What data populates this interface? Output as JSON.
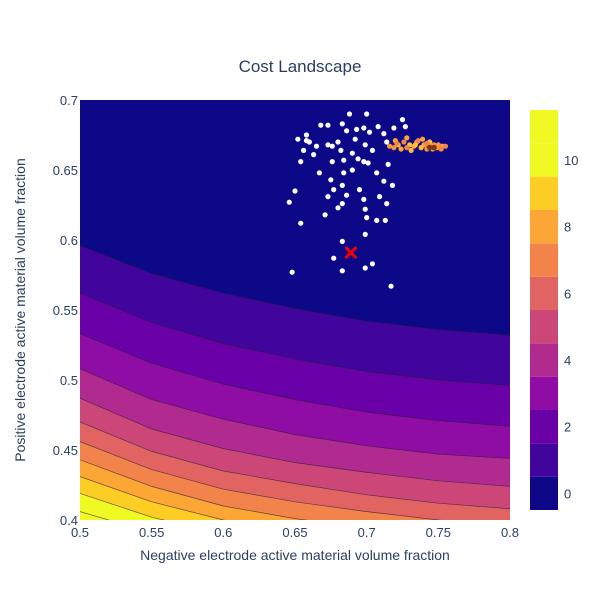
{
  "chart_data": {
    "type": "contour",
    "title": "Cost Landscape",
    "xlabel": "Negative electrode active material volume fraction",
    "ylabel": "Positive electrode active material volume fraction",
    "xlim": [
      0.5,
      0.8
    ],
    "ylim": [
      0.4,
      0.7
    ],
    "x_ticks": [
      0.5,
      0.55,
      0.6,
      0.65,
      0.7,
      0.75,
      0.8
    ],
    "x_tick_labels": [
      "0.5",
      "0.55",
      "0.6",
      "0.65",
      "0.7",
      "0.75",
      "0.8"
    ],
    "y_ticks": [
      0.4,
      0.45,
      0.5,
      0.55,
      0.6,
      0.65,
      0.7
    ],
    "y_tick_labels": [
      "0.4",
      "0.45",
      "0.5",
      "0.55",
      "0.6",
      "0.65",
      "0.7"
    ],
    "colorbar": {
      "range": [
        -0.5,
        11.5
      ],
      "ticks": [
        0,
        2,
        4,
        6,
        8,
        10
      ],
      "tick_labels": [
        "0",
        "2",
        "4",
        "6",
        "8",
        "10"
      ],
      "levels": [
        0,
        1,
        2,
        3,
        4,
        5,
        6,
        7,
        8,
        9,
        10,
        11
      ],
      "colors": [
        "#0d0887",
        "#41049d",
        "#6a00a8",
        "#8f0da4",
        "#b12a90",
        "#cc4778",
        "#e16462",
        "#f2844b",
        "#fca636",
        "#fcce25",
        "#f0f921"
      ]
    },
    "contour_lines": [
      {
        "level": 1,
        "points": [
          [
            0.5,
            0.596
          ],
          [
            0.55,
            0.576
          ],
          [
            0.6,
            0.562
          ],
          [
            0.65,
            0.551
          ],
          [
            0.7,
            0.542
          ],
          [
            0.75,
            0.536
          ],
          [
            0.8,
            0.532
          ]
        ]
      },
      {
        "level": 2,
        "points": [
          [
            0.5,
            0.562
          ],
          [
            0.55,
            0.541
          ],
          [
            0.6,
            0.526
          ],
          [
            0.65,
            0.515
          ],
          [
            0.7,
            0.506
          ],
          [
            0.75,
            0.5
          ],
          [
            0.8,
            0.496
          ]
        ]
      },
      {
        "level": 3,
        "points": [
          [
            0.5,
            0.533
          ],
          [
            0.55,
            0.512
          ],
          [
            0.6,
            0.497
          ],
          [
            0.65,
            0.486
          ],
          [
            0.7,
            0.477
          ],
          [
            0.75,
            0.471
          ],
          [
            0.8,
            0.467
          ]
        ]
      },
      {
        "level": 4,
        "points": [
          [
            0.5,
            0.508
          ],
          [
            0.55,
            0.486
          ],
          [
            0.6,
            0.472
          ],
          [
            0.65,
            0.461
          ],
          [
            0.7,
            0.453
          ],
          [
            0.75,
            0.447
          ],
          [
            0.8,
            0.444
          ]
        ]
      },
      {
        "level": 5,
        "points": [
          [
            0.5,
            0.487
          ],
          [
            0.55,
            0.465
          ],
          [
            0.6,
            0.451
          ],
          [
            0.65,
            0.441
          ],
          [
            0.7,
            0.434
          ],
          [
            0.75,
            0.428
          ],
          [
            0.8,
            0.424
          ]
        ]
      },
      {
        "level": 6,
        "points": [
          [
            0.5,
            0.47
          ],
          [
            0.55,
            0.449
          ],
          [
            0.6,
            0.435
          ],
          [
            0.65,
            0.426
          ],
          [
            0.7,
            0.418
          ],
          [
            0.75,
            0.412
          ],
          [
            0.8,
            0.408
          ]
        ]
      },
      {
        "level": 7,
        "points": [
          [
            0.5,
            0.456
          ],
          [
            0.55,
            0.436
          ],
          [
            0.6,
            0.422
          ],
          [
            0.65,
            0.413
          ],
          [
            0.7,
            0.406
          ],
          [
            0.75,
            0.4
          ],
          [
            0.8,
            0.395
          ]
        ]
      },
      {
        "level": 8,
        "points": [
          [
            0.5,
            0.443
          ],
          [
            0.55,
            0.424
          ],
          [
            0.6,
            0.41
          ],
          [
            0.65,
            0.401
          ],
          [
            0.7,
            0.394
          ],
          [
            0.75,
            0.388
          ],
          [
            0.8,
            0.384
          ]
        ]
      },
      {
        "level": 9,
        "points": [
          [
            0.5,
            0.431
          ],
          [
            0.55,
            0.413
          ],
          [
            0.6,
            0.4
          ],
          [
            0.65,
            0.391
          ],
          [
            0.7,
            0.384
          ],
          [
            0.75,
            0.378
          ],
          [
            0.8,
            0.374
          ]
        ]
      },
      {
        "level": 10,
        "points": [
          [
            0.5,
            0.419
          ],
          [
            0.55,
            0.402
          ],
          [
            0.6,
            0.39
          ],
          [
            0.65,
            0.381
          ],
          [
            0.7,
            0.374
          ],
          [
            0.75,
            0.369
          ],
          [
            0.8,
            0.365
          ]
        ]
      },
      {
        "level": 11,
        "points": [
          [
            0.5,
            0.406
          ],
          [
            0.55,
            0.391
          ],
          [
            0.6,
            0.38
          ],
          [
            0.65,
            0.372
          ],
          [
            0.7,
            0.366
          ],
          [
            0.75,
            0.361
          ],
          [
            0.8,
            0.357
          ]
        ]
      }
    ],
    "scatter_white": [
      [
        0.688,
        0.69
      ],
      [
        0.7,
        0.69
      ],
      [
        0.683,
        0.683
      ],
      [
        0.668,
        0.682
      ],
      [
        0.673,
        0.682
      ],
      [
        0.698,
        0.68
      ],
      [
        0.708,
        0.681
      ],
      [
        0.719,
        0.68
      ],
      [
        0.725,
        0.686
      ],
      [
        0.727,
        0.681
      ],
      [
        0.658,
        0.675
      ],
      [
        0.652,
        0.672
      ],
      [
        0.658,
        0.671
      ],
      [
        0.686,
        0.678
      ],
      [
        0.693,
        0.679
      ],
      [
        0.702,
        0.677
      ],
      [
        0.712,
        0.676
      ],
      [
        0.665,
        0.667
      ],
      [
        0.673,
        0.668
      ],
      [
        0.68,
        0.67
      ],
      [
        0.692,
        0.672
      ],
      [
        0.699,
        0.668
      ],
      [
        0.704,
        0.664
      ],
      [
        0.656,
        0.664
      ],
      [
        0.663,
        0.661
      ],
      [
        0.682,
        0.664
      ],
      [
        0.69,
        0.662
      ],
      [
        0.694,
        0.658
      ],
      [
        0.684,
        0.657
      ],
      [
        0.654,
        0.656
      ],
      [
        0.676,
        0.656
      ],
      [
        0.701,
        0.655
      ],
      [
        0.715,
        0.654
      ],
      [
        0.69,
        0.65
      ],
      [
        0.684,
        0.648
      ],
      [
        0.667,
        0.648
      ],
      [
        0.707,
        0.648
      ],
      [
        0.712,
        0.642
      ],
      [
        0.675,
        0.643
      ],
      [
        0.683,
        0.639
      ],
      [
        0.695,
        0.636
      ],
      [
        0.718,
        0.639
      ],
      [
        0.677,
        0.636
      ],
      [
        0.65,
        0.635
      ],
      [
        0.686,
        0.632
      ],
      [
        0.673,
        0.631
      ],
      [
        0.698,
        0.629
      ],
      [
        0.709,
        0.631
      ],
      [
        0.646,
        0.627
      ],
      [
        0.683,
        0.626
      ],
      [
        0.714,
        0.626
      ],
      [
        0.68,
        0.623
      ],
      [
        0.699,
        0.622
      ],
      [
        0.671,
        0.618
      ],
      [
        0.7,
        0.616
      ],
      [
        0.713,
        0.614
      ],
      [
        0.654,
        0.612
      ],
      [
        0.707,
        0.614
      ],
      [
        0.699,
        0.604
      ],
      [
        0.683,
        0.599
      ],
      [
        0.677,
        0.587
      ],
      [
        0.648,
        0.577
      ],
      [
        0.683,
        0.578
      ],
      [
        0.699,
        0.58
      ],
      [
        0.704,
        0.583
      ],
      [
        0.717,
        0.567
      ],
      [
        0.698,
        0.656
      ],
      [
        0.676,
        0.667
      ],
      [
        0.66,
        0.67
      ],
      [
        0.714,
        0.67
      ]
    ],
    "scatter_orange": [
      [
        0.72,
        0.671
      ],
      [
        0.726,
        0.67
      ],
      [
        0.73,
        0.668
      ],
      [
        0.735,
        0.67
      ],
      [
        0.74,
        0.668
      ],
      [
        0.745,
        0.667
      ],
      [
        0.748,
        0.666
      ],
      [
        0.75,
        0.666
      ],
      [
        0.753,
        0.667
      ],
      [
        0.755,
        0.667
      ],
      [
        0.738,
        0.666
      ],
      [
        0.742,
        0.665
      ],
      [
        0.733,
        0.667
      ],
      [
        0.728,
        0.666
      ],
      [
        0.722,
        0.668
      ],
      [
        0.716,
        0.667
      ],
      [
        0.724,
        0.665
      ],
      [
        0.736,
        0.671
      ],
      [
        0.744,
        0.67
      ],
      [
        0.75,
        0.668
      ],
      [
        0.746,
        0.665
      ],
      [
        0.752,
        0.665
      ],
      [
        0.731,
        0.664
      ],
      [
        0.719,
        0.666
      ],
      [
        0.728,
        0.673
      ],
      [
        0.742,
        0.669
      ],
      [
        0.734,
        0.668
      ],
      [
        0.747,
        0.668
      ],
      [
        0.739,
        0.672
      ],
      [
        0.721,
        0.669
      ]
    ],
    "scatter_dark": [
      [
        0.744,
        0.666
      ],
      [
        0.747,
        0.666
      ]
    ],
    "optimum_marker": {
      "x": 0.689,
      "y": 0.591,
      "symbol": "x",
      "color": "#e8000b"
    }
  }
}
